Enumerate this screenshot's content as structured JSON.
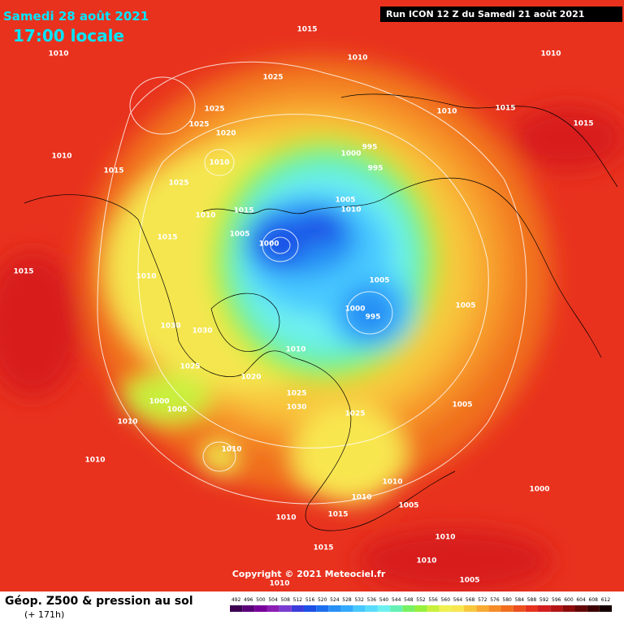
{
  "header": {
    "date": "Samedi 28 août 2021",
    "time": "17:00 locale",
    "run": "Run ICON 12 Z du Samedi 21 août 2021"
  },
  "copyright": "Copyright © 2021 Meteociel.fr",
  "footer": {
    "title": "Géop. Z500 & pression au sol",
    "lead": "(+ 171h)"
  },
  "legend": {
    "values": [
      492,
      496,
      500,
      504,
      508,
      512,
      516,
      520,
      524,
      528,
      532,
      536,
      540,
      544,
      548,
      552,
      556,
      560,
      564,
      568,
      572,
      576,
      580,
      584,
      588,
      592,
      596,
      600,
      604,
      608,
      612
    ],
    "colors": [
      "#3c0050",
      "#5a0078",
      "#78009a",
      "#8c1eb4",
      "#7a3cd0",
      "#3c3cdc",
      "#1e50e6",
      "#1e6ef0",
      "#2890f5",
      "#32aaff",
      "#46c8ff",
      "#5adcff",
      "#6ef0f0",
      "#64f0b4",
      "#78f064",
      "#96f03c",
      "#c8f03c",
      "#f0f050",
      "#f8e650",
      "#f8c83c",
      "#f8aa32",
      "#f58c28",
      "#f06e1e",
      "#eb501e",
      "#e6321e",
      "#d21e1e",
      "#b41414",
      "#8c0a0a",
      "#640505",
      "#3c0000",
      "#140000"
    ]
  },
  "isobar_labels": [
    "1015",
    "1010",
    "1010",
    "1010",
    "1025",
    "1025",
    "1025",
    "1020",
    "1010",
    "1015",
    "1015",
    "995",
    "1000",
    "995",
    "1010",
    "1010",
    "1015",
    "1025",
    "1015",
    "1005",
    "1010",
    "1010",
    "1005",
    "1000",
    "1015",
    "1015",
    "1010",
    "1005",
    "1000",
    "995",
    "1005",
    "1030",
    "1030",
    "1010",
    "1025",
    "1020",
    "1025",
    "1030",
    "1025",
    "1000",
    "1005",
    "1010",
    "1005",
    "1010",
    "1010",
    "1010",
    "1005",
    "1010",
    "1015",
    "1010",
    "1000",
    "1010",
    "1015",
    "1010",
    "1005",
    "1010"
  ]
}
